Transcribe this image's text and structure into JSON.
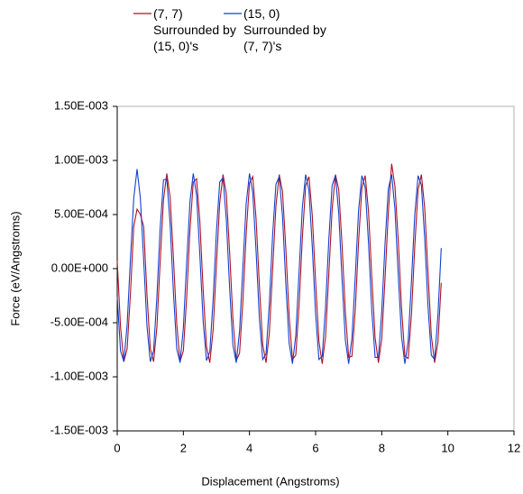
{
  "chart_data": {
    "type": "line",
    "x_label": "Displacement (Angstroms)",
    "y_label": "Force (eV/Angstroms)",
    "xlim": [
      0,
      12
    ],
    "xticks": [
      0,
      2,
      4,
      6,
      8,
      10,
      12
    ],
    "ylim": [
      -0.0015,
      0.0015
    ],
    "yticks": [
      {
        "value": -0.0015,
        "label": "-1.50E-003"
      },
      {
        "value": -0.001,
        "label": "-1.00E-003"
      },
      {
        "value": -0.0005,
        "label": "-5.00E-004"
      },
      {
        "value": 0,
        "label": "0.00E+000"
      },
      {
        "value": 0.0005,
        "label": "5.00E-004"
      },
      {
        "value": 0.001,
        "label": "1.00E-003"
      },
      {
        "value": 0.0015,
        "label": "1.50E-003"
      }
    ],
    "grid": false,
    "legend": "top",
    "x": [
      0,
      0.1,
      0.2,
      0.3,
      0.4,
      0.5,
      0.6,
      0.7,
      0.8,
      0.9,
      1,
      1.1,
      1.2,
      1.3,
      1.4,
      1.5,
      1.6,
      1.7,
      1.8,
      1.9,
      2,
      2.1,
      2.2,
      2.3,
      2.4,
      2.5,
      2.6,
      2.7,
      2.8,
      2.9,
      3,
      3.1,
      3.2,
      3.3,
      3.4,
      3.5,
      3.6,
      3.7,
      3.8,
      3.9,
      4,
      4.1,
      4.2,
      4.3,
      4.4,
      4.5,
      4.6,
      4.7,
      4.8,
      4.9,
      5,
      5.1,
      5.2,
      5.3,
      5.4,
      5.5,
      5.6,
      5.7,
      5.8,
      5.9,
      6,
      6.1,
      6.2,
      6.3,
      6.4,
      6.5,
      6.6,
      6.7,
      6.8,
      6.9,
      7,
      7.1,
      7.2,
      7.3,
      7.4,
      7.5,
      7.6,
      7.7,
      7.8,
      7.9,
      8,
      8.1,
      8.2,
      8.3,
      8.4,
      8.5,
      8.6,
      8.7,
      8.8,
      8.9,
      9,
      9.1,
      9.2,
      9.3,
      9.4,
      9.5,
      9.6,
      9.7,
      9.8
    ],
    "series": [
      {
        "name": "(7, 7) Surrounded by (15, 0)'s",
        "color": "#b01020",
        "values": [
          7e-05,
          -0.00054,
          -0.00086,
          -0.00074,
          -0.00023,
          0.00039,
          0.00055,
          0.0005,
          0.00039,
          -0.00024,
          -0.00074,
          -0.00086,
          -0.00054,
          7e-05,
          0.00064,
          0.00088,
          0.00066,
          0.0001,
          -0.00051,
          -0.00086,
          -0.00076,
          -0.00027,
          0.00036,
          0.0008,
          0.00083,
          0.00043,
          -0.0002,
          -0.00072,
          -0.00087,
          -0.00057,
          3e-05,
          0.00061,
          0.00087,
          0.00069,
          0.00015,
          -0.00047,
          -0.00085,
          -0.00078,
          -0.00031,
          0.00032,
          0.00079,
          0.00085,
          0.00046,
          -0.00016,
          -0.0007,
          -0.00087,
          -0.0006,
          -1e-05,
          0.00058,
          0.00087,
          0.00071,
          0.00018,
          -0.00044,
          -0.00084,
          -0.0008,
          -0.00034,
          0.00029,
          0.00077,
          0.00085,
          0.00049,
          -0.00012,
          -0.00067,
          -0.00088,
          -0.00063,
          -5e-05,
          0.00055,
          0.00087,
          0.00073,
          0.00022,
          -0.0004,
          -0.00082,
          -0.00081,
          -0.00038,
          0.00025,
          0.00075,
          0.00086,
          0.00053,
          -8e-05,
          -0.00064,
          -0.00087,
          -0.00065,
          -9e-05,
          0.00052,
          0.00097,
          0.00076,
          0.00026,
          -0.00037,
          -0.00081,
          -0.00083,
          -0.00042,
          0.00021,
          0.00073,
          0.00087,
          0.00056,
          -4e-05,
          -0.00062,
          -0.00087,
          -0.00068,
          -0.00013
        ]
      },
      {
        "name": "(15, 0) Surrounded by (7, 7)'s",
        "color": "#1040d0",
        "values": [
          -0.00026,
          -0.00076,
          -0.00086,
          -0.00052,
          9e-05,
          0.00065,
          0.00092,
          0.00065,
          8e-05,
          -0.00053,
          -0.00086,
          -0.00076,
          -0.00026,
          0.00038,
          0.00082,
          0.00083,
          0.00041,
          -0.00022,
          -0.00074,
          -0.00087,
          -0.00055,
          5e-05,
          0.00062,
          0.00088,
          0.00068,
          0.00012,
          -0.00049,
          -0.00085,
          -0.00077,
          -0.00029,
          0.00034,
          0.0008,
          0.00084,
          0.00045,
          -0.00018,
          -0.00071,
          -0.00087,
          -0.00058,
          1e-05,
          0.0006,
          0.00088,
          0.0007,
          0.00016,
          -0.00046,
          -0.00084,
          -0.00079,
          -0.00033,
          0.00031,
          0.00078,
          0.00085,
          0.00048,
          -0.00014,
          -0.00069,
          -0.00088,
          -0.00062,
          -3e-05,
          0.00057,
          0.00087,
          0.00072,
          0.0002,
          -0.00042,
          -0.00084,
          -0.00081,
          -0.00036,
          0.00027,
          0.00077,
          0.00086,
          0.00051,
          -0.0001,
          -0.00066,
          -0.00088,
          -0.00064,
          -7e-05,
          0.00054,
          0.00086,
          0.00075,
          0.00024,
          -0.00039,
          -0.00082,
          -0.00082,
          -0.0004,
          0.00023,
          0.00074,
          0.00087,
          0.00055,
          -6e-05,
          -0.00063,
          -0.00088,
          -0.00067,
          -0.00011,
          0.0005,
          0.00086,
          0.00077,
          0.00028,
          -0.00035,
          -0.0008,
          -0.00084,
          -0.00043,
          0.00019
        ]
      }
    ]
  }
}
